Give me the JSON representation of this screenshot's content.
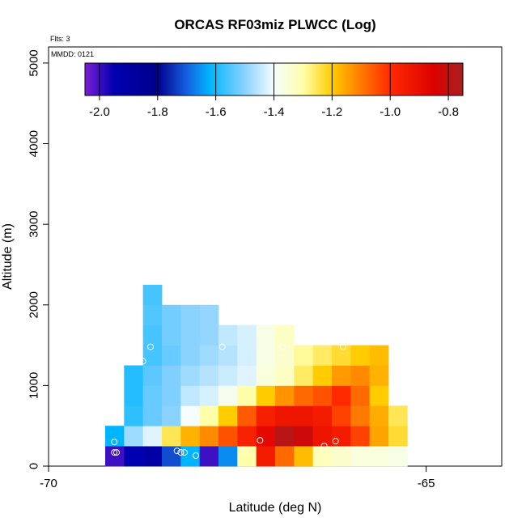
{
  "chart_data": {
    "type": "heatmap",
    "title": "ORCAS RF03miz PLWCC (Log)",
    "flights_label": "Flts: 3",
    "date_label": "MMDD: 0121",
    "xlabel": "Latitude (deg N)",
    "ylabel": "Altitude (m)",
    "xlim": [
      -70,
      -64
    ],
    "ylim": [
      0,
      5200
    ],
    "x_ticks": [
      -70,
      -65
    ],
    "x_tick_labels": [
      "-70",
      "-65"
    ],
    "y_ticks": [
      0,
      1000,
      2000,
      3000,
      4000,
      5000
    ],
    "y_tick_labels": [
      "0",
      "1000",
      "2000",
      "3000",
      "4000",
      "5000"
    ],
    "colorbar": {
      "range": [
        -2.05,
        -0.75
      ],
      "ticks": [
        -2.0,
        -1.8,
        -1.6,
        -1.4,
        -1.2,
        -1.0,
        -0.8
      ],
      "tick_labels": [
        "-2.0",
        "-1.8",
        "-1.6",
        "-1.4",
        "-1.2",
        "-1.0",
        "-0.8"
      ],
      "stops": [
        [
          -2.05,
          "#7a1fd6"
        ],
        [
          -1.95,
          "#0000b0"
        ],
        [
          -1.8,
          "#00008c"
        ],
        [
          -1.7,
          "#1560e0"
        ],
        [
          -1.62,
          "#00b5ff"
        ],
        [
          -1.5,
          "#8ad2ff"
        ],
        [
          -1.4,
          "#f5fdff"
        ],
        [
          -1.3,
          "#ffffaa"
        ],
        [
          -1.2,
          "#ffcc00"
        ],
        [
          -1.1,
          "#ff7a00"
        ],
        [
          -1.0,
          "#ff2a00"
        ],
        [
          -0.85,
          "#dd0000"
        ],
        [
          -0.75,
          "#a82020"
        ]
      ]
    },
    "cell_width_deg": 0.25,
    "cell_height_m": 250,
    "cells": [
      [
        -69.25,
        0,
        -2.0
      ],
      [
        -69.0,
        0,
        -1.95
      ],
      [
        -68.75,
        0,
        -1.9
      ],
      [
        -68.5,
        0,
        -1.72
      ],
      [
        -68.25,
        0,
        -1.62
      ],
      [
        -68.0,
        0,
        -2.0
      ],
      [
        -67.75,
        0,
        -1.66
      ],
      [
        -67.5,
        0,
        -1.3
      ],
      [
        -67.25,
        0,
        -0.95
      ],
      [
        -67.0,
        0,
        -1.08
      ],
      [
        -66.75,
        0,
        -1.18
      ],
      [
        -66.5,
        0,
        -1.32
      ],
      [
        -66.25,
        0,
        -1.34
      ],
      [
        -66.0,
        0,
        -1.36
      ],
      [
        -65.75,
        0,
        -1.36
      ],
      [
        -65.5,
        0,
        -1.37
      ],
      [
        -69.25,
        250,
        -1.62
      ],
      [
        -69.0,
        250,
        -1.48
      ],
      [
        -68.75,
        250,
        -1.42
      ],
      [
        -68.5,
        250,
        -1.25
      ],
      [
        -68.25,
        250,
        -1.17
      ],
      [
        -68.0,
        250,
        -1.12
      ],
      [
        -67.75,
        250,
        -1.05
      ],
      [
        -67.5,
        250,
        -0.97
      ],
      [
        -67.25,
        250,
        -0.88
      ],
      [
        -67.0,
        250,
        -0.78
      ],
      [
        -66.75,
        250,
        -0.82
      ],
      [
        -66.5,
        250,
        -0.92
      ],
      [
        -66.25,
        250,
        -0.95
      ],
      [
        -66.0,
        250,
        -1.03
      ],
      [
        -65.75,
        250,
        -1.15
      ],
      [
        -65.5,
        250,
        -1.23
      ],
      [
        -69.0,
        500,
        -1.58
      ],
      [
        -68.75,
        500,
        -1.53
      ],
      [
        -68.5,
        500,
        -1.5
      ],
      [
        -68.25,
        500,
        -1.4
      ],
      [
        -68.0,
        500,
        -1.3
      ],
      [
        -67.75,
        500,
        -1.2
      ],
      [
        -67.5,
        500,
        -1.06
      ],
      [
        -67.25,
        500,
        -0.96
      ],
      [
        -67.0,
        500,
        -0.93
      ],
      [
        -66.75,
        500,
        -0.93
      ],
      [
        -66.5,
        500,
        -0.95
      ],
      [
        -66.25,
        500,
        -1.03
      ],
      [
        -66.0,
        500,
        -1.1
      ],
      [
        -65.75,
        500,
        -1.16
      ],
      [
        -65.5,
        500,
        -1.25
      ],
      [
        -69.0,
        750,
        -1.59
      ],
      [
        -68.75,
        750,
        -1.53
      ],
      [
        -68.5,
        750,
        -1.51
      ],
      [
        -68.25,
        750,
        -1.45
      ],
      [
        -68.0,
        750,
        -1.43
      ],
      [
        -67.75,
        750,
        -1.38
      ],
      [
        -67.5,
        750,
        -1.3
      ],
      [
        -67.25,
        750,
        -1.2
      ],
      [
        -67.0,
        750,
        -1.13
      ],
      [
        -66.75,
        750,
        -1.08
      ],
      [
        -66.5,
        750,
        -1.05
      ],
      [
        -66.25,
        750,
        -1.0
      ],
      [
        -66.0,
        750,
        -1.08
      ],
      [
        -65.75,
        750,
        -1.2
      ],
      [
        -69.0,
        1000,
        -1.59
      ],
      [
        -68.75,
        1000,
        -1.54
      ],
      [
        -68.5,
        1000,
        -1.51
      ],
      [
        -68.25,
        1000,
        -1.48
      ],
      [
        -68.0,
        1000,
        -1.46
      ],
      [
        -67.75,
        1000,
        -1.44
      ],
      [
        -67.5,
        1000,
        -1.42
      ],
      [
        -67.25,
        1000,
        -1.36
      ],
      [
        -67.0,
        1000,
        -1.33
      ],
      [
        -66.75,
        1000,
        -1.26
      ],
      [
        -66.5,
        1000,
        -1.2
      ],
      [
        -66.25,
        1000,
        -1.14
      ],
      [
        -66.0,
        1000,
        -1.12
      ],
      [
        -65.75,
        1000,
        -1.17
      ],
      [
        -68.75,
        1250,
        -1.56
      ],
      [
        -68.5,
        1250,
        -1.53
      ],
      [
        -68.25,
        1250,
        -1.5
      ],
      [
        -68.0,
        1250,
        -1.48
      ],
      [
        -67.75,
        1250,
        -1.46
      ],
      [
        -67.5,
        1250,
        -1.43
      ],
      [
        -67.25,
        1250,
        -1.37
      ],
      [
        -67.0,
        1250,
        -1.34
      ],
      [
        -66.75,
        1250,
        -1.29
      ],
      [
        -66.5,
        1250,
        -1.26
      ],
      [
        -66.25,
        1250,
        -1.23
      ],
      [
        -66.0,
        1250,
        -1.2
      ],
      [
        -65.75,
        1250,
        -1.18
      ],
      [
        -68.75,
        1500,
        -1.56
      ],
      [
        -68.5,
        1500,
        -1.52
      ],
      [
        -68.25,
        1500,
        -1.5
      ],
      [
        -68.0,
        1500,
        -1.49
      ],
      [
        -67.75,
        1500,
        -1.45
      ],
      [
        -67.5,
        1500,
        -1.43
      ],
      [
        -67.25,
        1500,
        -1.37
      ],
      [
        -67.0,
        1500,
        -1.33
      ],
      [
        -68.75,
        1750,
        -1.55
      ],
      [
        -68.5,
        1750,
        -1.52
      ],
      [
        -68.25,
        1750,
        -1.5
      ],
      [
        -68.0,
        1750,
        -1.49
      ],
      [
        -68.75,
        2000,
        -1.56
      ]
    ],
    "points": [
      [
        -69.13,
        170
      ],
      [
        -69.1,
        170
      ],
      [
        -69.13,
        300
      ],
      [
        -68.3,
        190
      ],
      [
        -68.25,
        170
      ],
      [
        -68.2,
        170
      ],
      [
        -68.05,
        130
      ],
      [
        -67.4,
        180
      ],
      [
        -67.2,
        320
      ],
      [
        -66.35,
        250
      ],
      [
        -66.2,
        310
      ],
      [
        -68.85,
        2230
      ],
      [
        -68.75,
        1300
      ],
      [
        -68.65,
        1480
      ],
      [
        -67.7,
        1480
      ],
      [
        -66.9,
        1480
      ],
      [
        -66.1,
        1480
      ]
    ]
  }
}
